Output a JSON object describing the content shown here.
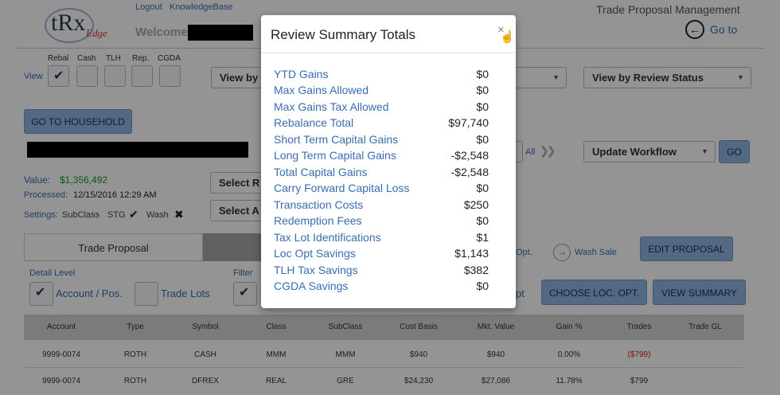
{
  "header": {
    "logo_text": "tRx",
    "logo_sub": "Edge",
    "logout": "Logout",
    "knowledgebase": "KnowledgeBase",
    "welcome": "Welcome",
    "app_title": "Trade Proposal Management",
    "goto": "Go to"
  },
  "view": {
    "label": "View",
    "columns": [
      "Rebal",
      "Cash",
      "TLH",
      "Rep.",
      "CGDA"
    ],
    "view_by_label": "View by",
    "view_by_review_status": "View by Review Status"
  },
  "household": {
    "button": "GO TO HOUSEHOLD",
    "value_label": "Value:",
    "value": "$1,356,492",
    "processed_label": "Processed:",
    "processed": "12/15/2016 12:29 AM",
    "settings_label": "Settings:",
    "subclass": "SubClass",
    "stg": "STG",
    "wash": "Wash",
    "select_r": "Select R",
    "select_a": "Select A",
    "all": "All",
    "update_workflow": "Update Workflow",
    "go": "GO"
  },
  "tabs": {
    "trade_proposal": "Trade Proposal"
  },
  "options": {
    "opt": "Opt.",
    "wash_sale": "Wash Sale",
    "edit_proposal": "EDIT PROPOSAL",
    "detail_level": "Detail Level",
    "account_pos": "Account / Pos.",
    "trade_lots": "Trade Lots",
    "filter": "Filter",
    "opt_partial": "pt",
    "choose_loc_opt": "CHOOSE LOC. OPT.",
    "view_summary": "VIEW SUMMARY"
  },
  "table": {
    "headers": [
      "Account",
      "Type",
      "Symbol",
      "Class",
      "SubClass",
      "Cost Basis",
      "Mkt. Value",
      "Gain %",
      "Trades",
      "Trade GL"
    ],
    "rows": [
      [
        "9999-0074",
        "ROTH",
        "CASH",
        "MMM",
        "MMM",
        "$940",
        "$940",
        "0.00%",
        "($799)",
        ""
      ],
      [
        "9999-0074",
        "ROTH",
        "DFREX",
        "REAL",
        "GRE",
        "$24,230",
        "$27,086",
        "11.78%",
        "$799",
        ""
      ]
    ]
  },
  "modal": {
    "title": "Review Summary Totals",
    "close": "×",
    "items": [
      {
        "label": "YTD Gains",
        "value": "$0"
      },
      {
        "label": "Max Gains Allowed",
        "value": "$0"
      },
      {
        "label": "Max Gains Tax Allowed",
        "value": "$0"
      },
      {
        "label": "Rebalance Total",
        "value": "$97,740"
      },
      {
        "label": "Short Term Capital Gains",
        "value": "$0"
      },
      {
        "label": "Long Term Capital Gains",
        "value": "-$2,548"
      },
      {
        "label": "Total Capital Gains",
        "value": "-$2,548"
      },
      {
        "label": "Carry Forward Capital Loss",
        "value": "$0"
      },
      {
        "label": "Transaction Costs",
        "value": "$250"
      },
      {
        "label": "Redemption Fees",
        "value": "$0"
      },
      {
        "label": "Tax Lot Identifications",
        "value": "$1"
      },
      {
        "label": "Loc Opt Savings",
        "value": "$1,143"
      },
      {
        "label": "TLH Tax Savings",
        "value": "$382"
      },
      {
        "label": "CGDA Savings",
        "value": "$0"
      }
    ]
  },
  "colors": {
    "accent_blue": "#8fb5de",
    "link_blue": "#3a6db0",
    "value_green": "#1a9a1a",
    "negative_red": "#cc2222"
  }
}
